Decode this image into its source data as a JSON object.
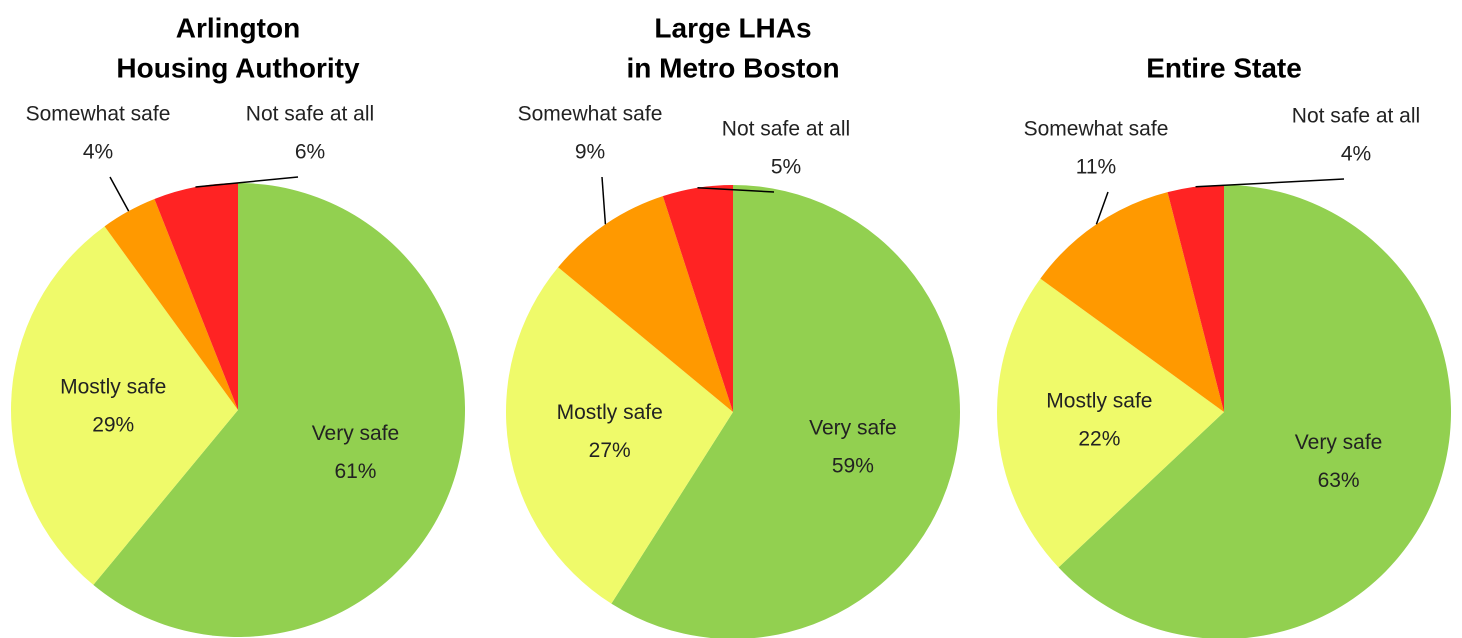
{
  "chart_data": [
    {
      "type": "pie",
      "title": [
        "Arlington",
        "Housing Authority"
      ],
      "categories": [
        "Very safe",
        "Mostly safe",
        "Somewhat safe",
        "Not safe at all"
      ],
      "values": [
        61,
        29,
        4,
        6
      ],
      "value_labels": [
        "61%",
        "29%",
        "4%",
        "6%"
      ],
      "colors": [
        "#92d050",
        "#effa6a",
        "#ff9900",
        "#ff2323"
      ]
    },
    {
      "type": "pie",
      "title": [
        "Large LHAs",
        "in Metro Boston"
      ],
      "categories": [
        "Very safe",
        "Mostly safe",
        "Somewhat safe",
        "Not safe at all"
      ],
      "values": [
        59,
        27,
        9,
        5
      ],
      "value_labels": [
        "59%",
        "27%",
        "9%",
        "5%"
      ],
      "colors": [
        "#92d050",
        "#effa6a",
        "#ff9900",
        "#ff2323"
      ]
    },
    {
      "type": "pie",
      "title": [
        "Entire State"
      ],
      "categories": [
        "Very safe",
        "Mostly safe",
        "Somewhat safe",
        "Not safe at all"
      ],
      "values": [
        63,
        22,
        11,
        4
      ],
      "value_labels": [
        "63%",
        "22%",
        "11%",
        "4%"
      ],
      "colors": [
        "#92d050",
        "#effa6a",
        "#ff9900",
        "#ff2323"
      ]
    }
  ]
}
